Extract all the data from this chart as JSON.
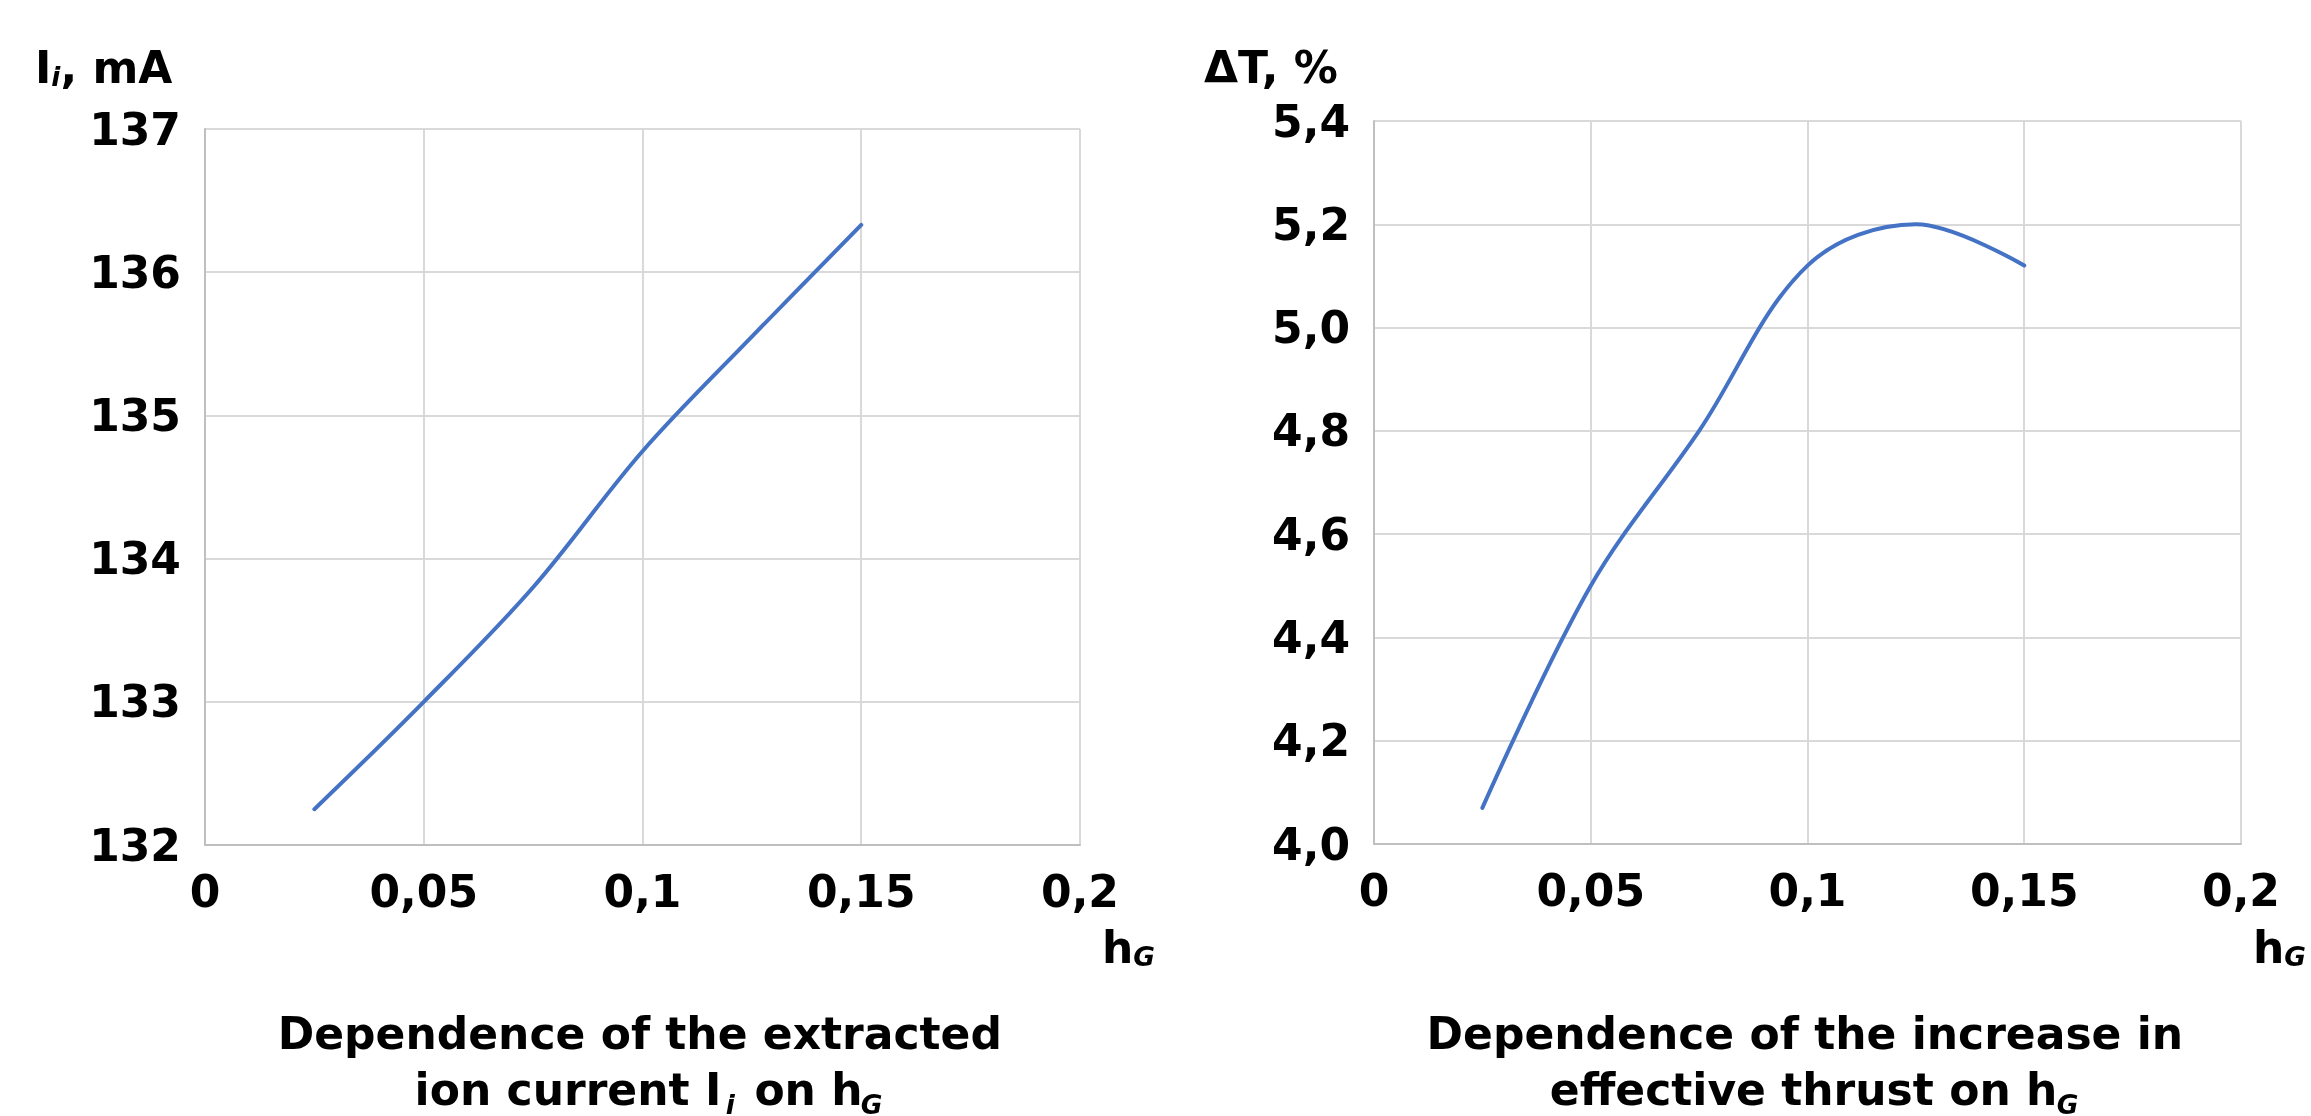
{
  "chart_data": [
    {
      "type": "line",
      "title": "Dependence of the extracted ion current I$_{i}$ on h$_{G}$",
      "xlabel": "h$_{G}$",
      "ylabel": "I$_{i}$, mA",
      "x": [
        0.025,
        0.05,
        0.075,
        0.1,
        0.125,
        0.15
      ],
      "series": [
        {
          "color": "#4472c4",
          "values": [
            132.25,
            133.0,
            133.8,
            134.75,
            135.55,
            136.33
          ]
        }
      ],
      "xlim": [
        0,
        0.2
      ],
      "xticks": [
        0,
        {
          "value": 0.05,
          "label": "0,05"
        },
        {
          "value": 0.1,
          "label": "0,1"
        },
        {
          "value": 0.15,
          "label": "0,15"
        },
        {
          "value": 0.2,
          "label": "0,2"
        }
      ],
      "ylim": [
        132,
        137
      ],
      "yticks": [
        132,
        133,
        134,
        135,
        136,
        137
      ],
      "grid": true,
      "marker": "none",
      "line_style": "solid"
    },
    {
      "type": "line",
      "title": "Dependence of the increase in effective thrust on h$_{G}$",
      "xlabel": "h$_{G}$",
      "ylabel": "ΔT, %",
      "x": [
        0.025,
        0.05,
        0.075,
        0.1,
        0.125,
        0.15
      ],
      "series": [
        {
          "color": "#4472c4",
          "values": [
            4.07,
            4.5,
            4.8,
            5.12,
            5.2,
            5.12
          ]
        }
      ],
      "xlim": [
        0,
        0.2
      ],
      "xticks": [
        0,
        {
          "value": 0.05,
          "label": "0,05"
        },
        {
          "value": 0.1,
          "label": "0,1"
        },
        {
          "value": 0.15,
          "label": "0,15"
        },
        {
          "value": 0.2,
          "label": "0,2"
        }
      ],
      "ylim": [
        4.0,
        5.4
      ],
      "yticks": [
        {
          "value": 4.0,
          "label": "4,0"
        },
        {
          "value": 4.2,
          "label": "4,2"
        },
        {
          "value": 4.4,
          "label": "4,4"
        },
        {
          "value": 4.6,
          "label": "4,6"
        },
        {
          "value": 4.8,
          "label": "4,8"
        },
        {
          "value": 5.0,
          "label": "5,0"
        },
        {
          "value": 5.2,
          "label": "5,2"
        },
        {
          "value": 5.4,
          "label": "5,4"
        }
      ],
      "grid": true,
      "marker": "none",
      "line_style": "solid"
    }
  ]
}
